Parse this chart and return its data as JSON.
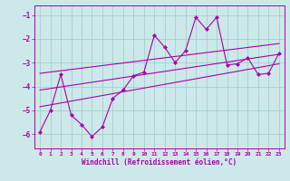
{
  "xlabel": "Windchill (Refroidissement éolien,°C)",
  "xlim": [
    -0.5,
    23.5
  ],
  "ylim": [
    -6.6,
    -0.6
  ],
  "yticks": [
    -6,
    -5,
    -4,
    -3,
    -2,
    -1
  ],
  "xticks": [
    0,
    1,
    2,
    3,
    4,
    5,
    6,
    7,
    8,
    9,
    10,
    11,
    12,
    13,
    14,
    15,
    16,
    17,
    18,
    19,
    20,
    21,
    22,
    23
  ],
  "bg_color": "#cce8e8",
  "line_color": "#aa00aa",
  "grid_color": "#99cccc",
  "data_x": [
    0,
    1,
    2,
    3,
    4,
    5,
    6,
    7,
    8,
    9,
    10,
    11,
    12,
    13,
    14,
    15,
    16,
    17,
    18,
    19,
    20,
    21,
    22,
    23
  ],
  "data_y": [
    -5.9,
    -5.0,
    -3.5,
    -5.2,
    -5.6,
    -6.1,
    -5.7,
    -4.5,
    -4.15,
    -3.55,
    -3.4,
    -1.85,
    -2.35,
    -3.0,
    -2.5,
    -1.1,
    -1.6,
    -1.1,
    -3.1,
    -3.05,
    -2.8,
    -3.5,
    -3.45,
    -2.6
  ],
  "line1_x": [
    0,
    23
  ],
  "line1_y": [
    -3.45,
    -2.2
  ],
  "line2_x": [
    0,
    23
  ],
  "line2_y": [
    -4.85,
    -3.05
  ],
  "line3_x": [
    0,
    23
  ],
  "line3_y": [
    -4.15,
    -2.65
  ]
}
